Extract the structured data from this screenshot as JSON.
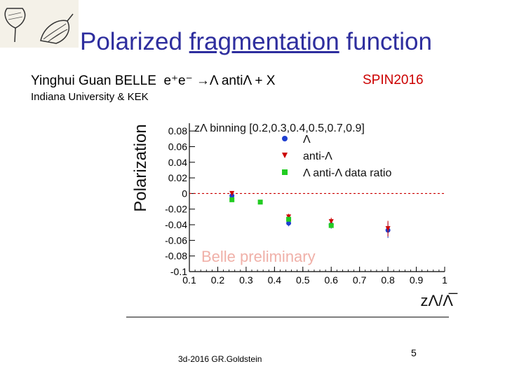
{
  "slide": {
    "title_pre": "Polarized ",
    "title_underlined": "fragmentation",
    "title_post": " function",
    "author": "Yinghui Guan BELLE",
    "process": "e⁺e⁻ →Λ antiΛ + X",
    "conference": "SPIN2016",
    "affiliation": "Indiana University & KEK",
    "footer": "3d-2016   GR.Goldstein",
    "page_number": "5"
  },
  "logo": {
    "icon": "spinning-top-sketch-icon"
  },
  "chart_data": {
    "type": "scatter",
    "title": "zΛ binning [0.2,0.3,0.4,0.5,0.7,0.9]",
    "ylabel": "Polarization",
    "xlabel": "zΛ/Λ̅",
    "watermark": "Belle preliminary",
    "xlim": [
      0.1,
      1.0
    ],
    "ylim": [
      -0.1,
      0.09
    ],
    "x_ticks": [
      "0.1",
      "0.2",
      "0.3",
      "0.4",
      "0.5",
      "0.6",
      "0.7",
      "0.8",
      "0.9",
      "1"
    ],
    "y_ticks": [
      "0.08",
      "0.06",
      "0.04",
      "0.02",
      "0",
      "-0.02",
      "-0.04",
      "-0.06",
      "-0.08",
      "-0.1"
    ],
    "reference_line": {
      "y": 0,
      "color": "#cc0000",
      "style": "dashed"
    },
    "series": [
      {
        "name": "Λ",
        "marker": "circle",
        "color": "#1f3fd0",
        "x": [
          0.25,
          0.45,
          0.6,
          0.8
        ],
        "y": [
          -0.003,
          -0.038,
          -0.04,
          -0.047
        ],
        "err": [
          0.003,
          0.004,
          0.005,
          0.01
        ]
      },
      {
        "name": "anti-Λ",
        "marker": "triangle-down",
        "color": "#cc0000",
        "x": [
          0.25,
          0.45,
          0.6,
          0.8
        ],
        "y": [
          0.0,
          -0.03,
          -0.036,
          -0.045
        ],
        "err": [
          0.003,
          0.004,
          0.005,
          0.01
        ]
      },
      {
        "name": "Λ anti-Λ  data ratio",
        "marker": "square",
        "color": "#22cc22",
        "x": [
          0.25,
          0.35,
          0.45,
          0.6
        ],
        "y": [
          -0.008,
          -0.011,
          -0.033,
          -0.041
        ],
        "err": [
          0.0,
          0.0,
          0.0,
          0.0
        ]
      }
    ]
  }
}
